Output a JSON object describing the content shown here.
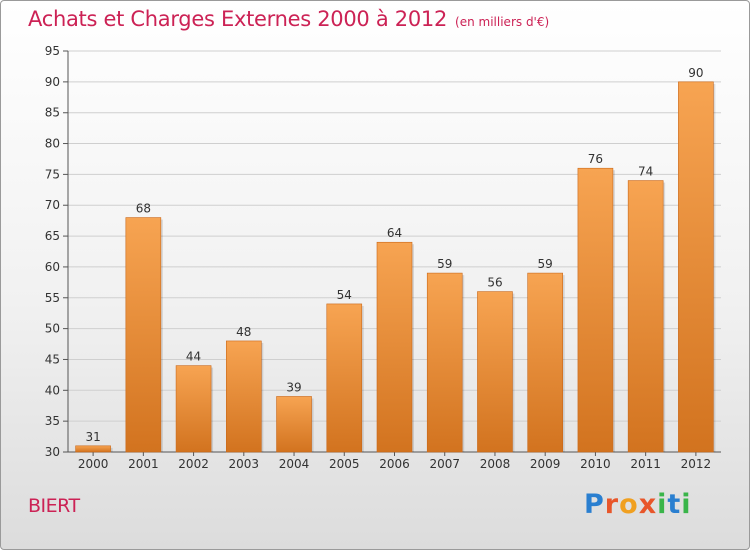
{
  "header": {
    "title": "Achats et Charges Externes 2000 à 2012",
    "subtitle": "(en milliers d'€)"
  },
  "location": "BIERT",
  "logo": {
    "text": "Proxiti",
    "letters": [
      {
        "ch": "P",
        "color": "#2a7fd0"
      },
      {
        "ch": "r",
        "color": "#e8562a"
      },
      {
        "ch": "o",
        "color": "#f0a020"
      },
      {
        "ch": "x",
        "color": "#e8562a"
      },
      {
        "ch": "i",
        "color": "#3ab54a"
      },
      {
        "ch": "t",
        "color": "#2a7fd0"
      },
      {
        "ch": "i",
        "color": "#3ab54a"
      }
    ]
  },
  "colors": {
    "bar_light": "#f7a452",
    "bar_dark": "#d2731f",
    "title": "#cc2255",
    "grid": "#cfcfcf"
  },
  "chart_data": {
    "type": "bar",
    "title": "Achats et Charges Externes 2000 à 2012",
    "subtitle": "(en milliers d'€)",
    "categories": [
      "2000",
      "2001",
      "2002",
      "2003",
      "2004",
      "2005",
      "2006",
      "2007",
      "2008",
      "2009",
      "2010",
      "2011",
      "2012"
    ],
    "values": [
      31,
      68,
      44,
      48,
      39,
      54,
      64,
      59,
      56,
      59,
      76,
      74,
      90
    ],
    "ylim": [
      30,
      95
    ],
    "yticks": [
      30,
      35,
      40,
      45,
      50,
      55,
      60,
      65,
      70,
      75,
      80,
      85,
      90,
      95
    ],
    "grid": true,
    "xlabel": "",
    "ylabel": ""
  }
}
